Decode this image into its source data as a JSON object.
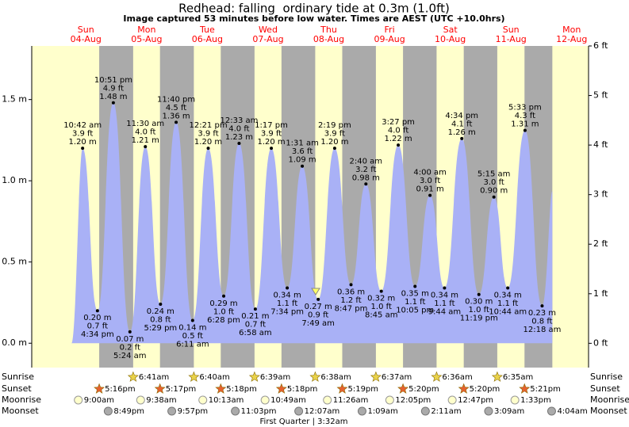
{
  "chart_data": {
    "type": "area",
    "title": "Redhead: falling  ordinary tide at 0.3m (1.0ft)",
    "subtitle": "Image captured 53 minutes before low water. Times are AEST (UTC +10.0hrs)",
    "days": [
      {
        "weekday": "Sun",
        "date": "04-Aug"
      },
      {
        "weekday": "Mon",
        "date": "05-Aug"
      },
      {
        "weekday": "Tue",
        "date": "06-Aug"
      },
      {
        "weekday": "Wed",
        "date": "07-Aug"
      },
      {
        "weekday": "Thu",
        "date": "08-Aug"
      },
      {
        "weekday": "Fri",
        "date": "09-Aug"
      },
      {
        "weekday": "Sat",
        "date": "10-Aug"
      },
      {
        "weekday": "Sun",
        "date": "11-Aug"
      },
      {
        "weekday": "Mon",
        "date": "12-Aug"
      }
    ],
    "x": [
      "10:42 am",
      "4:34 pm",
      "10:51 pm",
      "5:24 am",
      "11:30 am",
      "5:29 pm",
      "11:40 pm",
      "6:11 am",
      "12:21 pm",
      "6:28 pm",
      "12:33 am",
      "6:58 am",
      "1:17 pm",
      "7:34 pm",
      "1:31 am",
      "7:49 am",
      "2:19 pm",
      "8:47 pm",
      "2:40 am",
      "8:45 am",
      "3:27 pm",
      "10:05 pm",
      "4:00 am",
      "9:44 am",
      "4:34 pm",
      "11:19 pm",
      "5:15 am",
      "10:44 am",
      "5:33 pm",
      "12:18 am"
    ],
    "x_days": [
      "04-Aug",
      "04-Aug",
      "04-Aug",
      "05-Aug",
      "05-Aug",
      "05-Aug",
      "05-Aug",
      "06-Aug",
      "06-Aug",
      "06-Aug",
      "07-Aug",
      "07-Aug",
      "07-Aug",
      "07-Aug",
      "08-Aug",
      "08-Aug",
      "08-Aug",
      "08-Aug",
      "09-Aug",
      "09-Aug",
      "09-Aug",
      "09-Aug",
      "10-Aug",
      "10-Aug",
      "10-Aug",
      "10-Aug",
      "11-Aug",
      "11-Aug",
      "11-Aug",
      "12-Aug"
    ],
    "values": [
      1.2,
      0.2,
      1.48,
      0.07,
      1.21,
      0.24,
      1.36,
      0.14,
      1.2,
      0.29,
      1.23,
      0.21,
      1.2,
      0.34,
      1.09,
      0.27,
      1.2,
      0.36,
      0.98,
      0.32,
      1.22,
      0.35,
      0.91,
      0.34,
      1.26,
      0.3,
      0.9,
      0.34,
      1.31,
      0.23
    ],
    "value_labels": [
      "1.20 m",
      "0.20 m",
      "1.48 m",
      "0.07 m",
      "1.21 m",
      "0.24 m",
      "1.36 m",
      "0.14 m",
      "1.20 m",
      "0.29 m",
      "1.23 m",
      "0.21 m",
      "1.20 m",
      "0.34 m",
      "1.09 m",
      "0.27 m",
      "1.20 m",
      "0.36 m",
      "0.98 m",
      "0.32 m",
      "1.22 m",
      "0.35 m",
      "0.91 m",
      "0.34 m",
      "1.26 m",
      "0.30 m",
      "0.90 m",
      "0.34 m",
      "1.31 m",
      "0.23 m"
    ],
    "ft_labels": [
      "3.9 ft",
      "0.7 ft",
      "4.9 ft",
      "0.2 ft",
      "4.0 ft",
      "0.8 ft",
      "4.5 ft",
      "0.5 ft",
      "3.9 ft",
      "1.0 ft",
      "4.0 ft",
      "0.7 ft",
      "3.9 ft",
      "1.1 ft",
      "3.6 ft",
      "0.9 ft",
      "3.9 ft",
      "1.2 ft",
      "3.2 ft",
      "1.0 ft",
      "4.0 ft",
      "1.1 ft",
      "3.0 ft",
      "1.1 ft",
      "4.1 ft",
      "1.0 ft",
      "3.0 ft",
      "1.1 ft",
      "4.3 ft",
      "0.8 ft"
    ],
    "color": "#a9b1f6",
    "day_color": "#ffffcc",
    "night_color": "#aaaaaa",
    "ylim": [
      -0.15,
      1.83
    ],
    "yticks": [
      {
        "value": 0,
        "label": "0.0 m"
      },
      {
        "value": 0.5,
        "label": "0.5 m"
      },
      {
        "value": 1,
        "label": "1.0 m"
      },
      {
        "value": 1.5,
        "label": "1.5 m"
      }
    ],
    "y2lim": [
      -0.49,
      6.0
    ],
    "y2ticks": [
      {
        "value": 0,
        "label": "0 ft"
      },
      {
        "value": 1,
        "label": "1 ft"
      },
      {
        "value": 2,
        "label": "2 ft"
      },
      {
        "value": 3,
        "label": "3 ft"
      },
      {
        "value": 4,
        "label": "4 ft"
      },
      {
        "value": 5,
        "label": "5 ft"
      },
      {
        "value": 6,
        "label": "6 ft"
      }
    ],
    "sunrise": {
      "label": "Sunrise",
      "events": [
        {
          "date": "05-Aug",
          "time": "6:41am"
        },
        {
          "date": "06-Aug",
          "time": "6:40am"
        },
        {
          "date": "07-Aug",
          "time": "6:39am"
        },
        {
          "date": "08-Aug",
          "time": "6:38am"
        },
        {
          "date": "09-Aug",
          "time": "6:37am"
        },
        {
          "date": "10-Aug",
          "time": "6:36am"
        },
        {
          "date": "11-Aug",
          "time": "6:35am"
        }
      ]
    },
    "sunset": {
      "label": "Sunset",
      "events": [
        {
          "date": "04-Aug",
          "time": "5:16pm"
        },
        {
          "date": "05-Aug",
          "time": "5:17pm"
        },
        {
          "date": "06-Aug",
          "time": "5:18pm"
        },
        {
          "date": "07-Aug",
          "time": "5:18pm"
        },
        {
          "date": "08-Aug",
          "time": "5:19pm"
        },
        {
          "date": "09-Aug",
          "time": "5:20pm"
        },
        {
          "date": "10-Aug",
          "time": "5:20pm"
        },
        {
          "date": "11-Aug",
          "time": "5:21pm"
        }
      ]
    },
    "moonrise": {
      "label": "Moonrise",
      "events": [
        {
          "date": "04-Aug",
          "time": "9:00am"
        },
        {
          "date": "05-Aug",
          "time": "9:38am"
        },
        {
          "date": "06-Aug",
          "time": "10:13am"
        },
        {
          "date": "07-Aug",
          "time": "10:49am"
        },
        {
          "date": "08-Aug",
          "time": "11:26am"
        },
        {
          "date": "09-Aug",
          "time": "12:05pm"
        },
        {
          "date": "10-Aug",
          "time": "12:47pm"
        },
        {
          "date": "11-Aug",
          "time": "1:33pm"
        }
      ]
    },
    "moonset": {
      "label": "Moonset",
      "events": [
        {
          "date": "04-Aug",
          "time": "8:49pm"
        },
        {
          "date": "05-Aug",
          "time": "9:57pm"
        },
        {
          "date": "06-Aug",
          "time": "11:03pm"
        },
        {
          "date": "08-Aug",
          "time": "12:07am"
        },
        {
          "date": "09-Aug",
          "time": "1:09am"
        },
        {
          "date": "10-Aug",
          "time": "2:11am"
        },
        {
          "date": "11-Aug",
          "time": "3:09am"
        },
        {
          "date": "12-Aug",
          "time": "4:04am"
        }
      ]
    },
    "moon_phase": "First Quarter | 3:32am"
  }
}
